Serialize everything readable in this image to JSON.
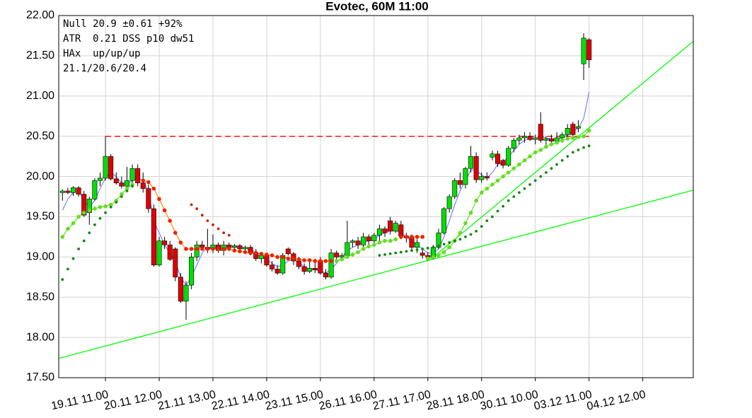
{
  "chart_data": {
    "type": "candlestick",
    "title": "Evotec, 60M 11:00",
    "info_lines": [
      "Null 20.9 ±0.61 +92%",
      "ATR  0.21 DSS p10 dw51",
      "HAx  up/up/up",
      "21.1/20.6/20.4"
    ],
    "xlim": [
      -0.7,
      117.4
    ],
    "ylim": [
      17.5,
      22
    ],
    "grid": true,
    "up_color": "#00e000",
    "down_color": "#e00000",
    "yticks": [
      {
        "value": 17.5,
        "label": "17.50"
      },
      {
        "value": 18,
        "label": "18.00"
      },
      {
        "value": 18.5,
        "label": "18.50"
      },
      {
        "value": 19,
        "label": "19.00"
      },
      {
        "value": 19.5,
        "label": "19.50"
      },
      {
        "value": 20,
        "label": "20.00"
      },
      {
        "value": 20.5,
        "label": "20.50"
      },
      {
        "value": 21,
        "label": "21.00"
      },
      {
        "value": 21.5,
        "label": "21.50"
      },
      {
        "value": 22,
        "label": "22.00"
      }
    ],
    "xticks": [
      {
        "value": 8,
        "label": "19.11 11.00"
      },
      {
        "value": 18,
        "label": "20.11 12.00"
      },
      {
        "value": 28,
        "label": "21.11 13.00"
      },
      {
        "value": 38,
        "label": "22.11 14.00"
      },
      {
        "value": 48,
        "label": "23.11 15.00"
      },
      {
        "value": 58,
        "label": "26.11 16.00"
      },
      {
        "value": 68,
        "label": "27.11 17.00"
      },
      {
        "value": 78,
        "label": "28.11 18.00"
      },
      {
        "value": 88,
        "label": "30.11 10.00"
      },
      {
        "value": 98,
        "label": "03.12 11.00"
      },
      {
        "value": 108,
        "label": "04.12 12.00"
      }
    ],
    "x": [
      0,
      1,
      2,
      3,
      4,
      5,
      6,
      7,
      8,
      9,
      10,
      11,
      12,
      13,
      14,
      15,
      16,
      17,
      18,
      19,
      20,
      21,
      22,
      23,
      24,
      25,
      26,
      27,
      28,
      29,
      30,
      31,
      32,
      33,
      34,
      35,
      36,
      37,
      38,
      39,
      40,
      41,
      42,
      43,
      44,
      45,
      46,
      47,
      48,
      49,
      50,
      51,
      52,
      53,
      54,
      55,
      56,
      57,
      58,
      59,
      60,
      61,
      62,
      63,
      64,
      65,
      66,
      67,
      68,
      69,
      70,
      71,
      72,
      73,
      74,
      75,
      76,
      77,
      78,
      79,
      80,
      81,
      82,
      83,
      84,
      85,
      86,
      87,
      88,
      89,
      90,
      91,
      92,
      93,
      94,
      95,
      96,
      97,
      98
    ],
    "open": [
      19.8,
      19.82,
      19.8,
      19.86,
      19.78,
      19.55,
      19.72,
      19.95,
      19.98,
      20.25,
      19.97,
      19.92,
      19.88,
      19.95,
      20.1,
      19.92,
      19.85,
      19.6,
      18.9,
      19.2,
      19.15,
      19.1,
      18.75,
      18.45,
      18.65,
      19.0,
      19.15,
      19.12,
      19.1,
      19.15,
      19.08,
      19.15,
      19.12,
      19.14,
      19.1,
      19.12,
      19.05,
      18.98,
      19.02,
      18.9,
      18.85,
      18.8,
      19.1,
      19.04,
      18.95,
      18.88,
      18.82,
      18.86,
      18.95,
      18.8,
      18.75,
      19.05,
      19.0,
      19.02,
      19.18,
      19.2,
      19.15,
      19.25,
      19.2,
      19.27,
      19.35,
      19.45,
      19.32,
      19.4,
      19.26,
      19.24,
      19.12,
      19.05,
      19.02,
      19.0,
      19.12,
      19.3,
      19.6,
      19.75,
      19.95,
      19.9,
      20.1,
      20.25,
      19.96,
      20.0,
      20.24,
      20.28,
      20.2,
      20.14,
      20.35,
      20.45,
      20.48,
      20.5,
      20.46,
      20.65,
      20.45,
      20.47,
      20.44,
      20.48,
      20.52,
      20.65,
      20.6,
      21.4,
      21.7
    ],
    "high": [
      19.84,
      19.86,
      19.88,
      19.88,
      19.82,
      19.75,
      19.98,
      20.05,
      20.5,
      20.28,
      20.05,
      20.0,
      20.12,
      20.15,
      20.15,
      20.05,
      19.9,
      19.65,
      19.25,
      19.25,
      19.2,
      19.12,
      18.8,
      18.7,
      19.05,
      19.2,
      19.2,
      19.35,
      19.28,
      19.18,
      19.2,
      19.18,
      19.16,
      19.16,
      19.14,
      19.15,
      19.1,
      19.05,
      19.05,
      18.95,
      18.9,
      19.05,
      19.12,
      19.06,
      19.0,
      18.92,
      18.95,
      18.98,
      19.0,
      18.85,
      19.1,
      19.08,
      19.05,
      19.45,
      19.22,
      19.25,
      19.3,
      19.28,
      19.3,
      19.4,
      19.38,
      19.5,
      19.45,
      19.45,
      19.3,
      19.28,
      19.22,
      19.1,
      19.06,
      19.15,
      19.35,
      19.62,
      19.78,
      19.98,
      20.05,
      20.12,
      20.38,
      20.3,
      20.05,
      20.05,
      20.32,
      20.32,
      20.22,
      20.38,
      20.48,
      20.52,
      20.55,
      20.55,
      20.52,
      20.8,
      20.5,
      20.52,
      20.55,
      20.55,
      20.65,
      20.68,
      20.7,
      21.78,
      21.72
    ],
    "low": [
      19.7,
      19.78,
      19.76,
      19.75,
      19.5,
      19.4,
      19.7,
      19.88,
      19.95,
      19.95,
      19.9,
      19.85,
      19.85,
      19.9,
      19.88,
      19.8,
      19.55,
      18.88,
      18.88,
      19.1,
      18.95,
      18.7,
      18.43,
      18.22,
      18.6,
      18.95,
      19.08,
      19.05,
      19.05,
      19.05,
      19.02,
      19.1,
      19.08,
      19.08,
      19.05,
      19.02,
      18.95,
      18.92,
      18.88,
      18.82,
      18.78,
      18.78,
      19.02,
      18.9,
      18.85,
      18.78,
      18.8,
      18.8,
      18.78,
      18.72,
      18.73,
      18.95,
      18.95,
      19.0,
      19.12,
      19.1,
      19.12,
      19.15,
      19.15,
      19.2,
      19.25,
      19.28,
      19.3,
      19.22,
      19.18,
      19.08,
      19.05,
      18.98,
      18.95,
      18.97,
      19.1,
      19.28,
      19.55,
      19.72,
      19.85,
      19.85,
      20.05,
      19.92,
      19.92,
      19.95,
      20.2,
      20.12,
      20.1,
      20.12,
      20.3,
      20.4,
      20.42,
      20.44,
      20.4,
      20.42,
      20.38,
      20.4,
      20.4,
      20.42,
      20.48,
      20.48,
      20.55,
      21.2,
      21.35
    ],
    "close": [
      19.82,
      19.8,
      19.86,
      19.78,
      19.52,
      19.72,
      19.95,
      19.98,
      20.25,
      19.97,
      19.92,
      19.88,
      19.95,
      20.1,
      19.92,
      19.85,
      19.6,
      18.9,
      19.2,
      19.15,
      18.97,
      18.75,
      18.45,
      18.65,
      19.0,
      19.15,
      19.12,
      19.1,
      19.15,
      19.08,
      19.15,
      19.12,
      19.14,
      19.1,
      19.12,
      19.05,
      18.98,
      19.02,
      18.9,
      18.85,
      18.8,
      19.02,
      19.04,
      18.95,
      18.88,
      18.82,
      18.86,
      18.84,
      18.8,
      18.75,
      19.05,
      19.0,
      19.02,
      19.18,
      19.2,
      19.15,
      19.25,
      19.2,
      19.27,
      19.35,
      19.3,
      19.32,
      19.42,
      19.26,
      19.24,
      19.12,
      19.18,
      19.02,
      19.0,
      19.12,
      19.3,
      19.6,
      19.75,
      19.95,
      19.9,
      20.1,
      20.25,
      19.96,
      20.0,
      19.98,
      20.28,
      20.16,
      20.14,
      20.35,
      20.45,
      20.48,
      20.5,
      20.46,
      20.48,
      20.45,
      20.47,
      20.44,
      20.48,
      20.52,
      20.6,
      20.52,
      20.62,
      21.72,
      21.45
    ],
    "lines": [
      {
        "color": "#00ff00",
        "x": [
          -0.7,
          117.4
        ],
        "values": [
          17.74,
          19.83
        ]
      },
      {
        "color": "#00ff00",
        "x": [
          68.5,
          117.4
        ],
        "values": [
          18.97,
          21.68
        ]
      }
    ],
    "hlines": [
      {
        "color": "#ff0000",
        "dashed": true,
        "x": [
          8,
          98
        ],
        "value": 20.5
      }
    ],
    "indicators": [
      {
        "style": "line",
        "color": "#8080ff",
        "x": [
          0,
          1,
          2,
          3,
          4,
          5,
          6,
          7,
          8,
          9,
          10,
          11,
          12,
          13,
          14,
          15,
          16,
          17,
          18,
          19,
          20,
          21,
          22,
          23,
          24,
          25,
          26,
          27,
          28,
          29,
          30,
          31,
          32,
          33,
          34,
          35,
          36,
          37,
          38,
          39,
          40,
          41,
          42,
          43,
          44,
          45,
          46,
          47,
          48,
          49,
          50,
          51,
          52,
          53,
          54,
          55,
          56,
          57,
          58,
          59,
          60,
          61,
          62,
          63,
          64,
          65,
          66,
          67,
          68,
          69,
          70,
          71,
          72,
          73,
          74,
          75,
          76,
          77,
          78,
          79,
          80,
          81,
          82,
          83,
          84,
          85,
          86,
          87,
          88,
          89,
          90,
          91,
          92,
          93,
          94,
          95,
          96,
          97,
          98
        ],
        "values": [
          19.58,
          19.72,
          19.8,
          19.82,
          19.7,
          19.62,
          19.7,
          19.85,
          19.98,
          20.05,
          20.0,
          19.92,
          19.9,
          19.95,
          19.98,
          19.95,
          19.82,
          19.45,
          19.3,
          19.15,
          19.05,
          18.95,
          18.75,
          18.65,
          18.75,
          18.9,
          19.05,
          19.12,
          19.12,
          19.12,
          19.1,
          19.12,
          19.12,
          19.12,
          19.11,
          19.1,
          19.05,
          19.0,
          18.97,
          18.92,
          18.88,
          18.9,
          18.95,
          18.97,
          18.93,
          18.88,
          18.85,
          18.84,
          18.83,
          18.8,
          18.85,
          18.92,
          19.0,
          19.08,
          19.12,
          19.15,
          19.18,
          19.2,
          19.22,
          19.27,
          19.3,
          19.33,
          19.33,
          19.3,
          19.25,
          19.2,
          19.15,
          19.1,
          19.05,
          19.05,
          19.1,
          19.25,
          19.45,
          19.65,
          19.82,
          19.95,
          20.08,
          20.08,
          20.02,
          19.98,
          20.05,
          20.15,
          20.18,
          20.25,
          20.32,
          20.4,
          20.45,
          20.47,
          20.47,
          20.5,
          20.48,
          20.46,
          20.46,
          20.48,
          20.52,
          20.56,
          20.6,
          20.72,
          21.05
        ]
      },
      {
        "style": "line-dots",
        "color": "#66dd22",
        "x": [
          0,
          1,
          2,
          3,
          4,
          5,
          6,
          7,
          8,
          9,
          10,
          11,
          12,
          13
        ],
        "values": [
          19.25,
          19.35,
          19.42,
          19.5,
          19.55,
          19.58,
          19.6,
          19.62,
          19.63,
          19.65,
          19.7,
          19.78,
          19.85,
          19.9
        ]
      },
      {
        "style": "line-dots",
        "color": "#66dd22",
        "x": [
          51,
          52,
          53,
          54,
          55,
          56,
          57,
          58,
          59,
          60,
          61,
          62
        ],
        "values": [
          18.95,
          18.97,
          19.0,
          19.03,
          19.06,
          19.1,
          19.13,
          19.15,
          19.18,
          19.2,
          19.2,
          19.22
        ]
      },
      {
        "style": "line-dots",
        "color": "#66dd22",
        "x": [
          68,
          69,
          70,
          71,
          72,
          73,
          74,
          75,
          76,
          77,
          78,
          79,
          80,
          81,
          82,
          83,
          84,
          85,
          86,
          87,
          88,
          89,
          90,
          91,
          92,
          93,
          94,
          95,
          96,
          97,
          98
        ],
        "values": [
          18.98,
          19.0,
          19.02,
          19.06,
          19.12,
          19.2,
          19.3,
          19.42,
          19.55,
          19.7,
          19.8,
          19.85,
          19.9,
          19.95,
          20.0,
          20.05,
          20.1,
          20.15,
          20.2,
          20.25,
          20.3,
          20.33,
          20.37,
          20.4,
          20.42,
          20.45,
          20.47,
          20.48,
          20.49,
          20.5,
          20.57
        ]
      },
      {
        "style": "line-dots",
        "color": "#ee2200",
        "line_color": "#ff8800",
        "x": [
          15,
          16,
          17,
          18,
          19,
          20,
          21,
          22,
          23,
          24,
          25,
          26,
          27,
          28,
          29,
          30,
          31,
          32,
          33,
          34,
          35,
          36,
          37,
          38,
          39,
          40,
          41,
          42,
          43,
          44,
          45,
          46,
          47,
          48,
          49,
          50
        ],
        "values": [
          19.95,
          19.93,
          19.85,
          19.72,
          19.58,
          19.45,
          19.3,
          19.18,
          19.1,
          19.1,
          19.1,
          19.1,
          19.1,
          19.1,
          19.1,
          19.1,
          19.1,
          19.08,
          19.07,
          19.06,
          19.05,
          19.05,
          19.04,
          19.03,
          19.02,
          19.0,
          19.0,
          18.98,
          18.98,
          18.97,
          18.96,
          18.96,
          18.95,
          18.95,
          18.95,
          18.95
        ]
      },
      {
        "style": "line-dots",
        "color": "#ee2200",
        "line_color": "#ff8800",
        "x": [
          63,
          64,
          65,
          66,
          67
        ],
        "values": [
          19.25,
          19.25,
          19.25,
          19.25,
          19.25
        ]
      },
      {
        "style": "dots",
        "color": "#cc2200",
        "x": [
          24,
          25,
          26,
          27,
          28,
          29,
          30,
          31
        ],
        "values": [
          19.65,
          19.6,
          19.52,
          19.45,
          19.4,
          19.35,
          19.3,
          19.27
        ]
      },
      {
        "style": "dots",
        "color": "#118811",
        "x": [
          0,
          1,
          2,
          3,
          4,
          5,
          6,
          7,
          8,
          9,
          10,
          11,
          12,
          13,
          59,
          60,
          61,
          62,
          63,
          64,
          65,
          66,
          67,
          68,
          69,
          70,
          71,
          72,
          73,
          74,
          75,
          76,
          77,
          78,
          79,
          80,
          81,
          82,
          83,
          84,
          85,
          86,
          87,
          88,
          89,
          90,
          91,
          92,
          93,
          94,
          95,
          96,
          97,
          98
        ],
        "values": [
          18.72,
          18.85,
          18.98,
          19.1,
          19.2,
          19.3,
          19.4,
          19.48,
          19.55,
          19.62,
          19.68,
          19.75,
          19.82,
          19.88,
          19.02,
          19.03,
          19.04,
          19.05,
          19.06,
          19.07,
          19.08,
          19.09,
          19.1,
          19.11,
          19.12,
          19.14,
          19.16,
          19.18,
          19.2,
          19.22,
          19.25,
          19.28,
          19.32,
          19.38,
          19.45,
          19.5,
          19.57,
          19.63,
          19.7,
          19.75,
          19.8,
          19.85,
          19.9,
          19.95,
          20.0,
          20.05,
          20.1,
          20.15,
          20.2,
          20.25,
          20.3,
          20.33,
          20.36,
          20.38
        ]
      }
    ]
  }
}
